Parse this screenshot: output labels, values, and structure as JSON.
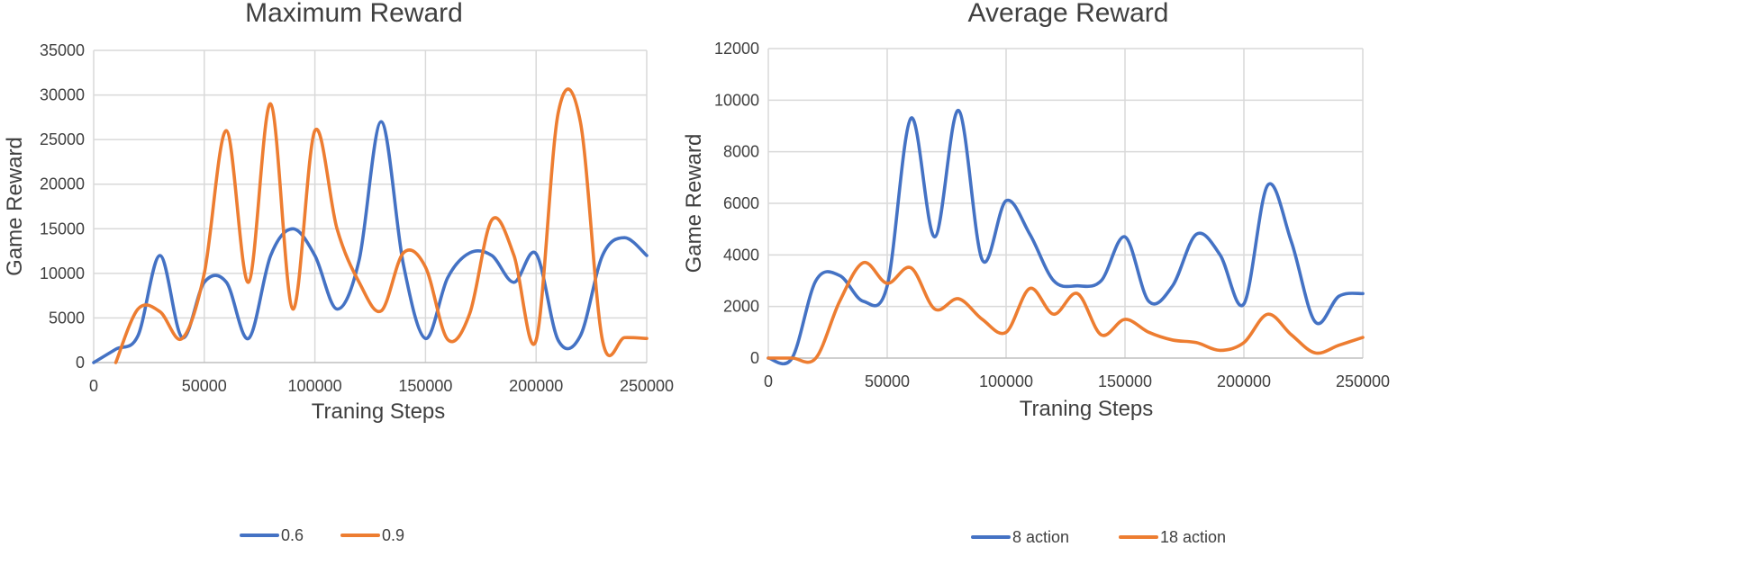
{
  "chart_data": [
    {
      "type": "line",
      "title": "Maximum Reward",
      "xlabel": "Traning Steps",
      "ylabel": "Game Reward",
      "xlim": [
        0,
        250000
      ],
      "ylim": [
        0,
        35000
      ],
      "x_ticks": [
        0,
        50000,
        100000,
        150000,
        200000,
        250000
      ],
      "y_ticks": [
        0,
        5000,
        10000,
        15000,
        20000,
        25000,
        30000,
        35000
      ],
      "grid": "vertical and horizontal",
      "legend_position": "bottom",
      "x": [
        0,
        10000,
        20000,
        30000,
        40000,
        50000,
        60000,
        70000,
        80000,
        90000,
        100000,
        110000,
        120000,
        130000,
        140000,
        150000,
        160000,
        170000,
        180000,
        190000,
        200000,
        210000,
        220000,
        230000,
        240000,
        250000
      ],
      "series": [
        {
          "name": "0.6",
          "color": "#4472c4",
          "values": [
            0,
            1500,
            3000,
            12000,
            2800,
            9000,
            9000,
            2700,
            12000,
            15000,
            12000,
            6000,
            11500,
            27000,
            11000,
            2700,
            9500,
            12300,
            12000,
            9000,
            12200,
            2500,
            3000,
            12000,
            14000,
            12000
          ]
        },
        {
          "name": "0.9",
          "color": "#ed7d31",
          "values": [
            null,
            0,
            6000,
            5700,
            2700,
            10000,
            26000,
            9000,
            29000,
            6000,
            26000,
            15000,
            9000,
            5800,
            12300,
            10700,
            2600,
            5500,
            16000,
            12000,
            2500,
            28000,
            27000,
            2500,
            2800,
            2700
          ]
        }
      ]
    },
    {
      "type": "line",
      "title": "Average Reward",
      "xlabel": "Traning Steps",
      "ylabel": "Game Reward",
      "xlim": [
        0,
        250000
      ],
      "ylim": [
        0,
        12000
      ],
      "x_ticks": [
        0,
        50000,
        100000,
        150000,
        200000,
        250000
      ],
      "y_ticks": [
        0,
        2000,
        4000,
        6000,
        8000,
        10000,
        12000
      ],
      "grid": "vertical and horizontal",
      "legend_position": "bottom",
      "x": [
        0,
        10000,
        20000,
        30000,
        40000,
        50000,
        60000,
        70000,
        80000,
        90000,
        100000,
        110000,
        120000,
        130000,
        140000,
        150000,
        160000,
        170000,
        180000,
        190000,
        200000,
        210000,
        220000,
        230000,
        240000,
        250000
      ],
      "series": [
        {
          "name": "8 action",
          "color": "#4472c4",
          "values": [
            0,
            0,
            3000,
            3200,
            2200,
            2800,
            9300,
            4700,
            9600,
            3800,
            6100,
            4800,
            3000,
            2800,
            3000,
            4700,
            2200,
            2800,
            4800,
            4000,
            2100,
            6700,
            4500,
            1400,
            2400,
            2500
          ]
        },
        {
          "name": "18 action",
          "color": "#ed7d31",
          "values": [
            0,
            0,
            0,
            2200,
            3700,
            2900,
            3500,
            1900,
            2300,
            1500,
            1000,
            2700,
            1700,
            2500,
            900,
            1500,
            1000,
            700,
            600,
            300,
            600,
            1700,
            900,
            200,
            500,
            800
          ]
        }
      ]
    }
  ]
}
